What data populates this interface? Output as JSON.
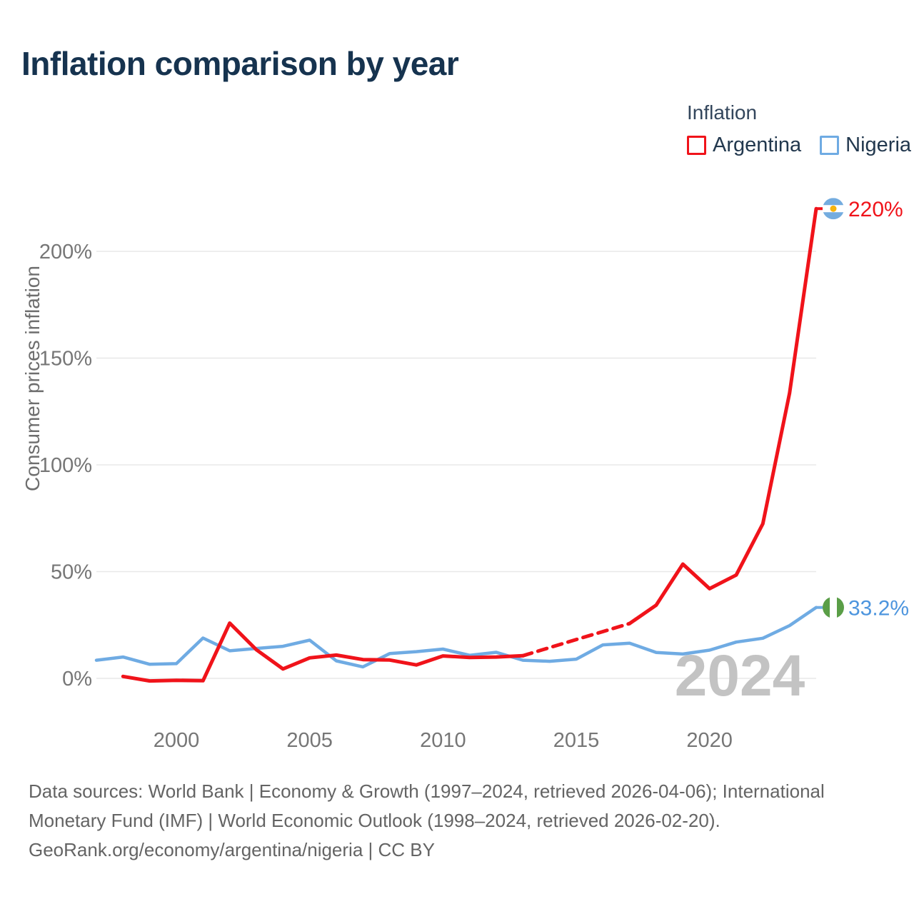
{
  "title": "Inflation comparison by year",
  "legend": {
    "title": "Inflation",
    "items": [
      {
        "label": "Argentina",
        "color": "#f0131a"
      },
      {
        "label": "Nigeria",
        "color": "#6fabe3"
      }
    ]
  },
  "watermark": "2024",
  "y_axis": {
    "title": "Consumer prices inflation",
    "ticks": [
      "0%",
      "50%",
      "100%",
      "150%",
      "200%"
    ],
    "tick_values": [
      0,
      50,
      100,
      150,
      200
    ]
  },
  "x_axis": {
    "ticks": [
      2000,
      2005,
      2010,
      2015,
      2020
    ]
  },
  "footer": {
    "lines": [
      "Data sources: World Bank | Economy & Growth (1997–2024, retrieved 2026-04-06); International",
      "Monetary Fund (IMF) | World Economic Outlook (1998–2024, retrieved 2026-02-20).",
      "GeoRank.org/economy/argentina/nigeria | CC BY"
    ]
  },
  "colors": {
    "argentina": "#f0131a",
    "nigeria_line": "#6fabe3",
    "nigeria_label": "#4d95de",
    "gridline": "#e8e8e8",
    "tick_text": "#767676",
    "watermark": "#c3c3c3",
    "flag_argentina_blue": "#74acdf",
    "flag_argentina_sun": "#f6b40e",
    "flag_nigeria_green": "#5a9e47"
  },
  "chart_data": {
    "type": "line",
    "title": "Inflation comparison by year",
    "xlabel": "",
    "ylabel": "Consumer prices inflation",
    "x_range": [
      1997,
      2024
    ],
    "ylim": [
      -8,
      232
    ],
    "grid": "horizontal-only",
    "legend_position": "top-right",
    "series": [
      {
        "name": "Argentina",
        "color": "#f0131a",
        "years": [
          1998,
          1999,
          2000,
          2001,
          2002,
          2003,
          2004,
          2005,
          2006,
          2007,
          2008,
          2009,
          2010,
          2011,
          2012,
          2013,
          2014,
          2015,
          2016,
          2017,
          2018,
          2019,
          2020,
          2021,
          2022,
          2023,
          2024
        ],
        "values": [
          0.9,
          -1.2,
          -0.9,
          -1.1,
          25.9,
          13.4,
          4.4,
          9.6,
          10.9,
          8.8,
          8.6,
          6.3,
          10.5,
          9.8,
          10.0,
          10.6,
          14.4,
          18.2,
          21.9,
          25.7,
          34.3,
          53.5,
          42.0,
          48.4,
          72.4,
          133.5,
          220.0
        ],
        "line_style_dashed_between": [
          2013,
          2017
        ],
        "end_label": "220%",
        "end_flag": "argentina"
      },
      {
        "name": "Nigeria",
        "color": "#6fabe3",
        "years": [
          1997,
          1998,
          1999,
          2000,
          2001,
          2002,
          2003,
          2004,
          2005,
          2006,
          2007,
          2008,
          2009,
          2010,
          2011,
          2012,
          2013,
          2014,
          2015,
          2016,
          2017,
          2018,
          2019,
          2020,
          2021,
          2022,
          2023,
          2024
        ],
        "values": [
          8.5,
          10.0,
          6.6,
          6.9,
          18.9,
          12.9,
          14.0,
          15.0,
          17.9,
          8.2,
          5.4,
          11.6,
          12.5,
          13.7,
          10.8,
          12.2,
          8.5,
          8.0,
          9.0,
          15.7,
          16.5,
          12.1,
          11.4,
          13.2,
          17.0,
          18.8,
          24.7,
          33.2
        ],
        "end_label": "33.2%",
        "end_flag": "nigeria"
      }
    ]
  }
}
